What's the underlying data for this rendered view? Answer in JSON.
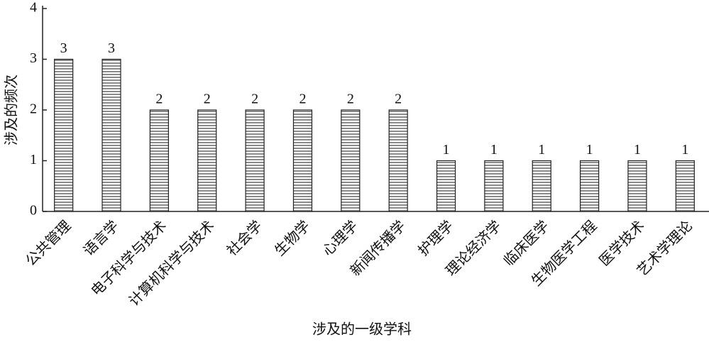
{
  "chart_data": {
    "type": "bar",
    "x_label": "涉及的一级学科",
    "y_label": "涉及的频次",
    "categories": [
      "公共管理",
      "语言学",
      "电子科学与技术",
      "计算机科学与技术",
      "社会学",
      "生物学",
      "心理学",
      "新闻传播学",
      "护理学",
      "理论经济学",
      "临床医学",
      "生物医学工程",
      "医学技术",
      "艺术学理论"
    ],
    "values": [
      3,
      3,
      2,
      2,
      2,
      2,
      2,
      2,
      1,
      1,
      1,
      1,
      1,
      1
    ],
    "color": "#8a8a8a",
    "ylim": [
      0,
      4
    ],
    "yticks": [
      0,
      1,
      2,
      3,
      4
    ],
    "grid": false
  }
}
